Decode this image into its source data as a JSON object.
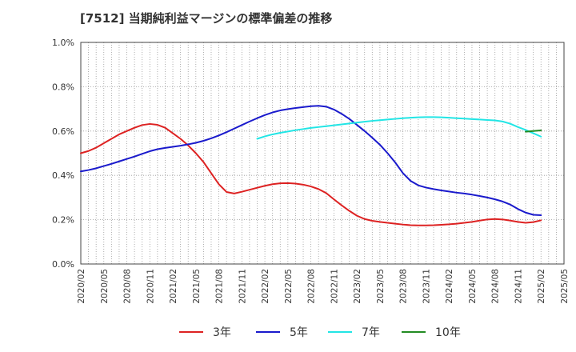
{
  "title": "[7512]  当期純利益マージンの標準偏差の推移",
  "chart_data": {
    "type": "line",
    "title": "[7512]  当期純利益マージンの標準偏差の推移",
    "xlabel": "",
    "ylabel": "",
    "y_tick_labels": [
      "0.0%",
      "0.2%",
      "0.4%",
      "0.6%",
      "0.8%",
      "1.0%"
    ],
    "ylim": [
      0,
      1.0
    ],
    "x_tick_labels": [
      "2020/02",
      "2020/05",
      "2020/08",
      "2020/11",
      "2021/02",
      "2021/05",
      "2021/08",
      "2021/11",
      "2022/02",
      "2022/05",
      "2022/08",
      "2022/11",
      "2023/02",
      "2023/05",
      "2023/08",
      "2023/11",
      "2024/02",
      "2024/05",
      "2024/08",
      "2024/11",
      "2025/02",
      "2025/05"
    ],
    "grid": true,
    "legend_position": "bottom",
    "series": [
      {
        "name": "3年",
        "color": "#dd2222",
        "points": [
          [
            "2020/02",
            0.5
          ],
          [
            "2020/03",
            0.51
          ],
          [
            "2020/04",
            0.525
          ],
          [
            "2020/05",
            0.545
          ],
          [
            "2020/06",
            0.565
          ],
          [
            "2020/07",
            0.585
          ],
          [
            "2020/08",
            0.6
          ],
          [
            "2020/09",
            0.615
          ],
          [
            "2020/10",
            0.627
          ],
          [
            "2020/11",
            0.632
          ],
          [
            "2020/12",
            0.628
          ],
          [
            "2021/01",
            0.615
          ],
          [
            "2021/02",
            0.59
          ],
          [
            "2021/03",
            0.565
          ],
          [
            "2021/04",
            0.535
          ],
          [
            "2021/05",
            0.5
          ],
          [
            "2021/06",
            0.46
          ],
          [
            "2021/07",
            0.41
          ],
          [
            "2021/08",
            0.36
          ],
          [
            "2021/09",
            0.325
          ],
          [
            "2021/10",
            0.318
          ],
          [
            "2021/11",
            0.326
          ],
          [
            "2021/12",
            0.335
          ],
          [
            "2022/01",
            0.344
          ],
          [
            "2022/02",
            0.353
          ],
          [
            "2022/03",
            0.36
          ],
          [
            "2022/04",
            0.364
          ],
          [
            "2022/05",
            0.365
          ],
          [
            "2022/06",
            0.363
          ],
          [
            "2022/07",
            0.358
          ],
          [
            "2022/08",
            0.35
          ],
          [
            "2022/09",
            0.338
          ],
          [
            "2022/10",
            0.32
          ],
          [
            "2022/11",
            0.292
          ],
          [
            "2022/12",
            0.265
          ],
          [
            "2023/01",
            0.24
          ],
          [
            "2023/02",
            0.218
          ],
          [
            "2023/03",
            0.203
          ],
          [
            "2023/04",
            0.195
          ],
          [
            "2023/05",
            0.19
          ],
          [
            "2023/06",
            0.186
          ],
          [
            "2023/07",
            0.182
          ],
          [
            "2023/08",
            0.178
          ],
          [
            "2023/09",
            0.175
          ],
          [
            "2023/10",
            0.174
          ],
          [
            "2023/11",
            0.174
          ],
          [
            "2023/12",
            0.175
          ],
          [
            "2024/01",
            0.177
          ],
          [
            "2024/02",
            0.179
          ],
          [
            "2024/03",
            0.182
          ],
          [
            "2024/04",
            0.186
          ],
          [
            "2024/05",
            0.19
          ],
          [
            "2024/06",
            0.196
          ],
          [
            "2024/07",
            0.201
          ],
          [
            "2024/08",
            0.203
          ],
          [
            "2024/09",
            0.201
          ],
          [
            "2024/10",
            0.196
          ],
          [
            "2024/11",
            0.19
          ],
          [
            "2024/12",
            0.186
          ],
          [
            "2025/01",
            0.189
          ],
          [
            "2025/02",
            0.197
          ]
        ]
      },
      {
        "name": "5年",
        "color": "#1a1acc",
        "points": [
          [
            "2020/02",
            0.418
          ],
          [
            "2020/03",
            0.424
          ],
          [
            "2020/04",
            0.432
          ],
          [
            "2020/05",
            0.442
          ],
          [
            "2020/06",
            0.452
          ],
          [
            "2020/07",
            0.463
          ],
          [
            "2020/08",
            0.474
          ],
          [
            "2020/09",
            0.485
          ],
          [
            "2020/10",
            0.497
          ],
          [
            "2020/11",
            0.509
          ],
          [
            "2020/12",
            0.518
          ],
          [
            "2021/01",
            0.524
          ],
          [
            "2021/02",
            0.529
          ],
          [
            "2021/03",
            0.534
          ],
          [
            "2021/04",
            0.54
          ],
          [
            "2021/05",
            0.547
          ],
          [
            "2021/06",
            0.556
          ],
          [
            "2021/07",
            0.567
          ],
          [
            "2021/08",
            0.58
          ],
          [
            "2021/09",
            0.595
          ],
          [
            "2021/10",
            0.611
          ],
          [
            "2021/11",
            0.627
          ],
          [
            "2021/12",
            0.643
          ],
          [
            "2022/01",
            0.658
          ],
          [
            "2022/02",
            0.672
          ],
          [
            "2022/03",
            0.684
          ],
          [
            "2022/04",
            0.693
          ],
          [
            "2022/05",
            0.699
          ],
          [
            "2022/06",
            0.704
          ],
          [
            "2022/07",
            0.708
          ],
          [
            "2022/08",
            0.712
          ],
          [
            "2022/09",
            0.714
          ],
          [
            "2022/10",
            0.71
          ],
          [
            "2022/11",
            0.697
          ],
          [
            "2022/12",
            0.678
          ],
          [
            "2023/01",
            0.655
          ],
          [
            "2023/02",
            0.628
          ],
          [
            "2023/03",
            0.6
          ],
          [
            "2023/04",
            0.57
          ],
          [
            "2023/05",
            0.538
          ],
          [
            "2023/06",
            0.5
          ],
          [
            "2023/07",
            0.458
          ],
          [
            "2023/08",
            0.41
          ],
          [
            "2023/09",
            0.375
          ],
          [
            "2023/10",
            0.355
          ],
          [
            "2023/11",
            0.345
          ],
          [
            "2023/12",
            0.338
          ],
          [
            "2024/01",
            0.332
          ],
          [
            "2024/02",
            0.327
          ],
          [
            "2024/03",
            0.322
          ],
          [
            "2024/04",
            0.318
          ],
          [
            "2024/05",
            0.313
          ],
          [
            "2024/06",
            0.307
          ],
          [
            "2024/07",
            0.3
          ],
          [
            "2024/08",
            0.292
          ],
          [
            "2024/09",
            0.282
          ],
          [
            "2024/10",
            0.268
          ],
          [
            "2024/11",
            0.248
          ],
          [
            "2024/12",
            0.232
          ],
          [
            "2025/01",
            0.222
          ],
          [
            "2025/02",
            0.22
          ]
        ]
      },
      {
        "name": "7年",
        "color": "#22e5e5",
        "points": [
          [
            "2022/01",
            0.565
          ],
          [
            "2022/02",
            0.576
          ],
          [
            "2022/03",
            0.585
          ],
          [
            "2022/04",
            0.592
          ],
          [
            "2022/05",
            0.598
          ],
          [
            "2022/06",
            0.604
          ],
          [
            "2022/07",
            0.609
          ],
          [
            "2022/08",
            0.614
          ],
          [
            "2022/09",
            0.618
          ],
          [
            "2022/10",
            0.622
          ],
          [
            "2022/11",
            0.626
          ],
          [
            "2022/12",
            0.63
          ],
          [
            "2023/01",
            0.634
          ],
          [
            "2023/02",
            0.638
          ],
          [
            "2023/03",
            0.642
          ],
          [
            "2023/04",
            0.646
          ],
          [
            "2023/05",
            0.649
          ],
          [
            "2023/06",
            0.652
          ],
          [
            "2023/07",
            0.655
          ],
          [
            "2023/08",
            0.658
          ],
          [
            "2023/09",
            0.66
          ],
          [
            "2023/10",
            0.662
          ],
          [
            "2023/11",
            0.663
          ],
          [
            "2023/12",
            0.663
          ],
          [
            "2024/01",
            0.662
          ],
          [
            "2024/02",
            0.66
          ],
          [
            "2024/03",
            0.658
          ],
          [
            "2024/04",
            0.656
          ],
          [
            "2024/05",
            0.654
          ],
          [
            "2024/06",
            0.652
          ],
          [
            "2024/07",
            0.65
          ],
          [
            "2024/08",
            0.648
          ],
          [
            "2024/09",
            0.643
          ],
          [
            "2024/10",
            0.633
          ],
          [
            "2024/11",
            0.618
          ],
          [
            "2024/12",
            0.605
          ],
          [
            "2025/01",
            0.59
          ],
          [
            "2025/02",
            0.575
          ]
        ]
      },
      {
        "name": "10年",
        "color": "#228b22",
        "points": [
          [
            "2024/12",
            0.597
          ],
          [
            "2025/01",
            0.6
          ],
          [
            "2025/02",
            0.603
          ]
        ]
      }
    ]
  }
}
